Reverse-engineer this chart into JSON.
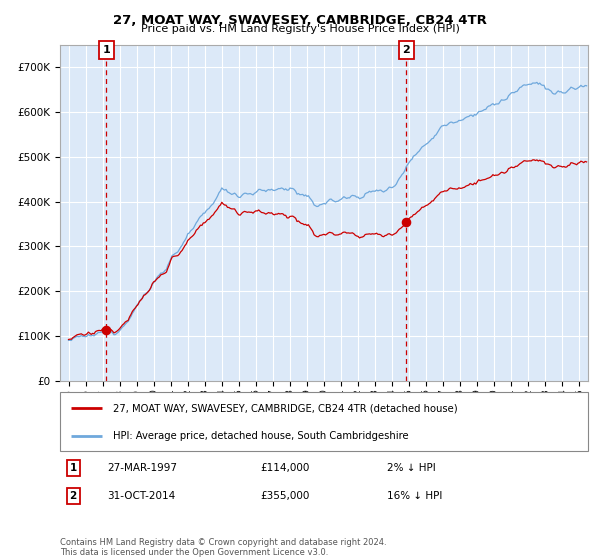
{
  "title": "27, MOAT WAY, SWAVESEY, CAMBRIDGE, CB24 4TR",
  "subtitle": "Price paid vs. HM Land Registry's House Price Index (HPI)",
  "hpi_label": "HPI: Average price, detached house, South Cambridgeshire",
  "property_label": "27, MOAT WAY, SWAVESEY, CAMBRIDGE, CB24 4TR (detached house)",
  "sale1_date": "27-MAR-1997",
  "sale1_price": 114000,
  "sale1_pct": "2% ↓ HPI",
  "sale2_date": "31-OCT-2014",
  "sale2_price": 355000,
  "sale2_pct": "16% ↓ HPI",
  "sale1_year": 1997.23,
  "sale2_year": 2014.83,
  "ylim_max": 750000,
  "ylim_min": 0,
  "xlim_min": 1994.5,
  "xlim_max": 2025.5,
  "bg_color": "#dce9f8",
  "grid_color": "#ffffff",
  "hpi_color": "#6fa8dc",
  "property_color": "#cc0000",
  "vline_color": "#cc0000",
  "footer": "Contains HM Land Registry data © Crown copyright and database right 2024.\nThis data is licensed under the Open Government Licence v3.0."
}
